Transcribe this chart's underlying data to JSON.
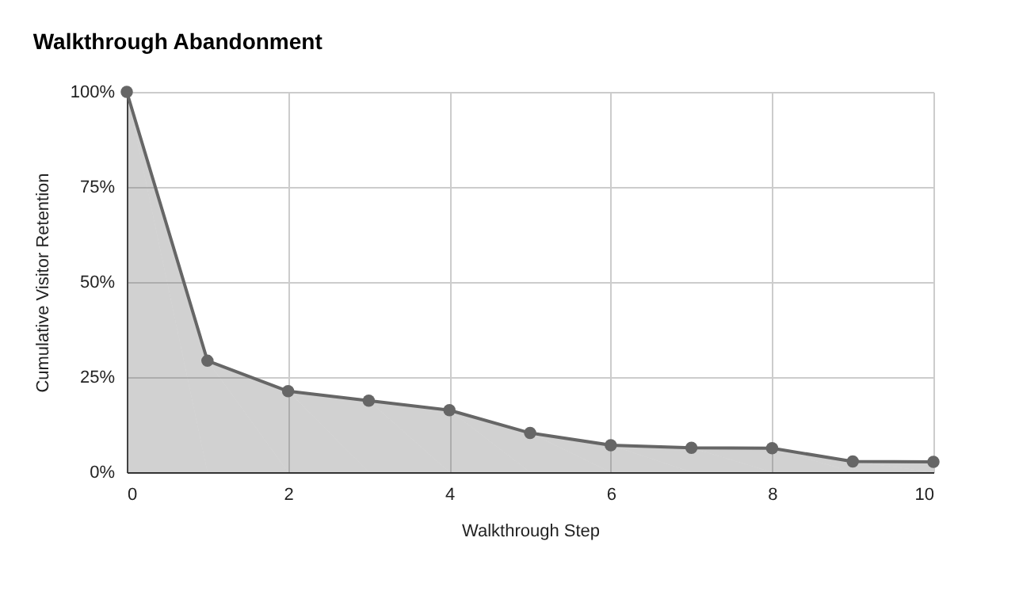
{
  "chart_data": {
    "type": "area",
    "title": "Walkthrough Abandonment",
    "xlabel": "Walkthrough Step",
    "ylabel": "Cumulative Visitor Retention",
    "x": [
      0,
      1,
      2,
      3,
      4,
      5,
      6,
      7,
      8,
      9,
      10
    ],
    "series": [
      {
        "color": "#666666",
        "values": [
          100,
          29.3,
          21.3,
          18.8,
          16.3,
          10.3,
          7.1,
          6.4,
          6.3,
          2.8,
          2.7
        ]
      }
    ],
    "xlim": [
      0,
      10
    ],
    "xticks": [
      0,
      2,
      4,
      6,
      8,
      10
    ],
    "ylim": [
      0,
      100
    ],
    "yticks": [
      {
        "value": 0,
        "label": "0%"
      },
      {
        "value": 25,
        "label": "25%"
      },
      {
        "value": 50,
        "label": "50%"
      },
      {
        "value": 75,
        "label": "75%"
      },
      {
        "value": 100,
        "label": "100%"
      }
    ],
    "grid": true,
    "marker": "circle"
  }
}
